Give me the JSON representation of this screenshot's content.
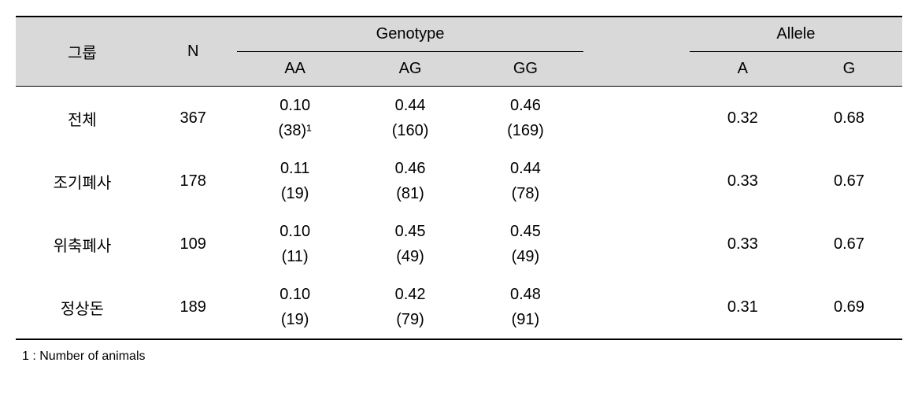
{
  "columns": {
    "group": "그룹",
    "n": "N",
    "genotype": "Genotype",
    "allele": "Allele",
    "aa": "AA",
    "ag": "AG",
    "gg": "GG",
    "a": "A",
    "g": "G"
  },
  "styling": {
    "header_bg": "#d9d9d9",
    "border_color": "#000000",
    "font_size_body": 20,
    "font_size_footnote": 16,
    "top_border_width": 2,
    "mid_border_width": 1,
    "bottom_border_width": 2
  },
  "rows": [
    {
      "group": "전체",
      "n": "367",
      "aa_freq": "0.10",
      "aa_count": "(38)¹",
      "ag_freq": "0.44",
      "ag_count": "(160)",
      "gg_freq": "0.46",
      "gg_count": "(169)",
      "a": "0.32",
      "g": "0.68"
    },
    {
      "group": "조기폐사",
      "n": "178",
      "aa_freq": "0.11",
      "aa_count": "(19)",
      "ag_freq": "0.46",
      "ag_count": "(81)",
      "gg_freq": "0.44",
      "gg_count": "(78)",
      "a": "0.33",
      "g": "0.67"
    },
    {
      "group": "위축폐사",
      "n": "109",
      "aa_freq": "0.10",
      "aa_count": "(11)",
      "ag_freq": "0.45",
      "ag_count": "(49)",
      "gg_freq": "0.45",
      "gg_count": "(49)",
      "a": "0.33",
      "g": "0.67"
    },
    {
      "group": "정상돈",
      "n": "189",
      "aa_freq": "0.10",
      "aa_count": "(19)",
      "ag_freq": "0.42",
      "ag_count": "(79)",
      "gg_freq": "0.48",
      "gg_count": "(91)",
      "a": "0.31",
      "g": "0.69"
    }
  ],
  "footnote": "1 : Number of animals"
}
